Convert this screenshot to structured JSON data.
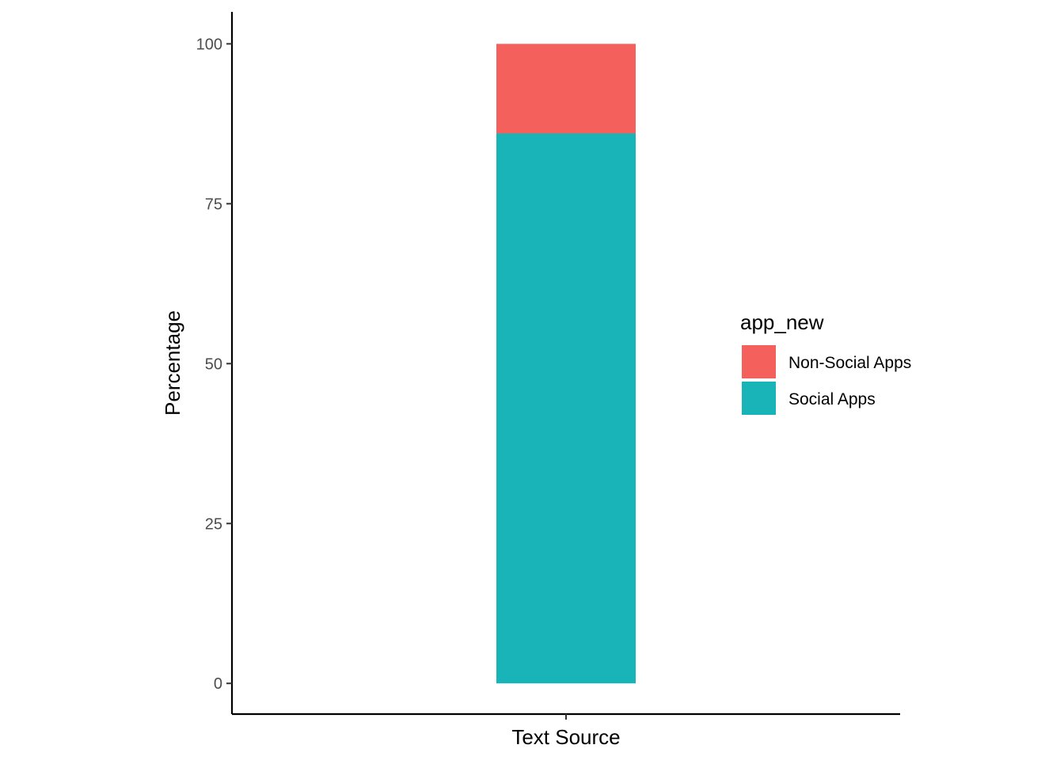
{
  "chart_data": {
    "type": "bar",
    "stacked": true,
    "categories": [
      "Text Source"
    ],
    "series": [
      {
        "name": "Social Apps",
        "values": [
          86
        ],
        "color": "#19B4B8"
      },
      {
        "name": "Non-Social Apps",
        "values": [
          14
        ],
        "color": "#F4615C"
      }
    ],
    "title": "",
    "xlabel": "Text Source",
    "ylabel": "Percentage",
    "ylim": [
      -4.8,
      105
    ],
    "yticks": [
      0,
      25,
      50,
      75,
      100
    ],
    "grid": false,
    "legend": {
      "title": "app_new",
      "placement": "right",
      "entries": [
        "Non-Social Apps",
        "Social Apps"
      ]
    }
  }
}
